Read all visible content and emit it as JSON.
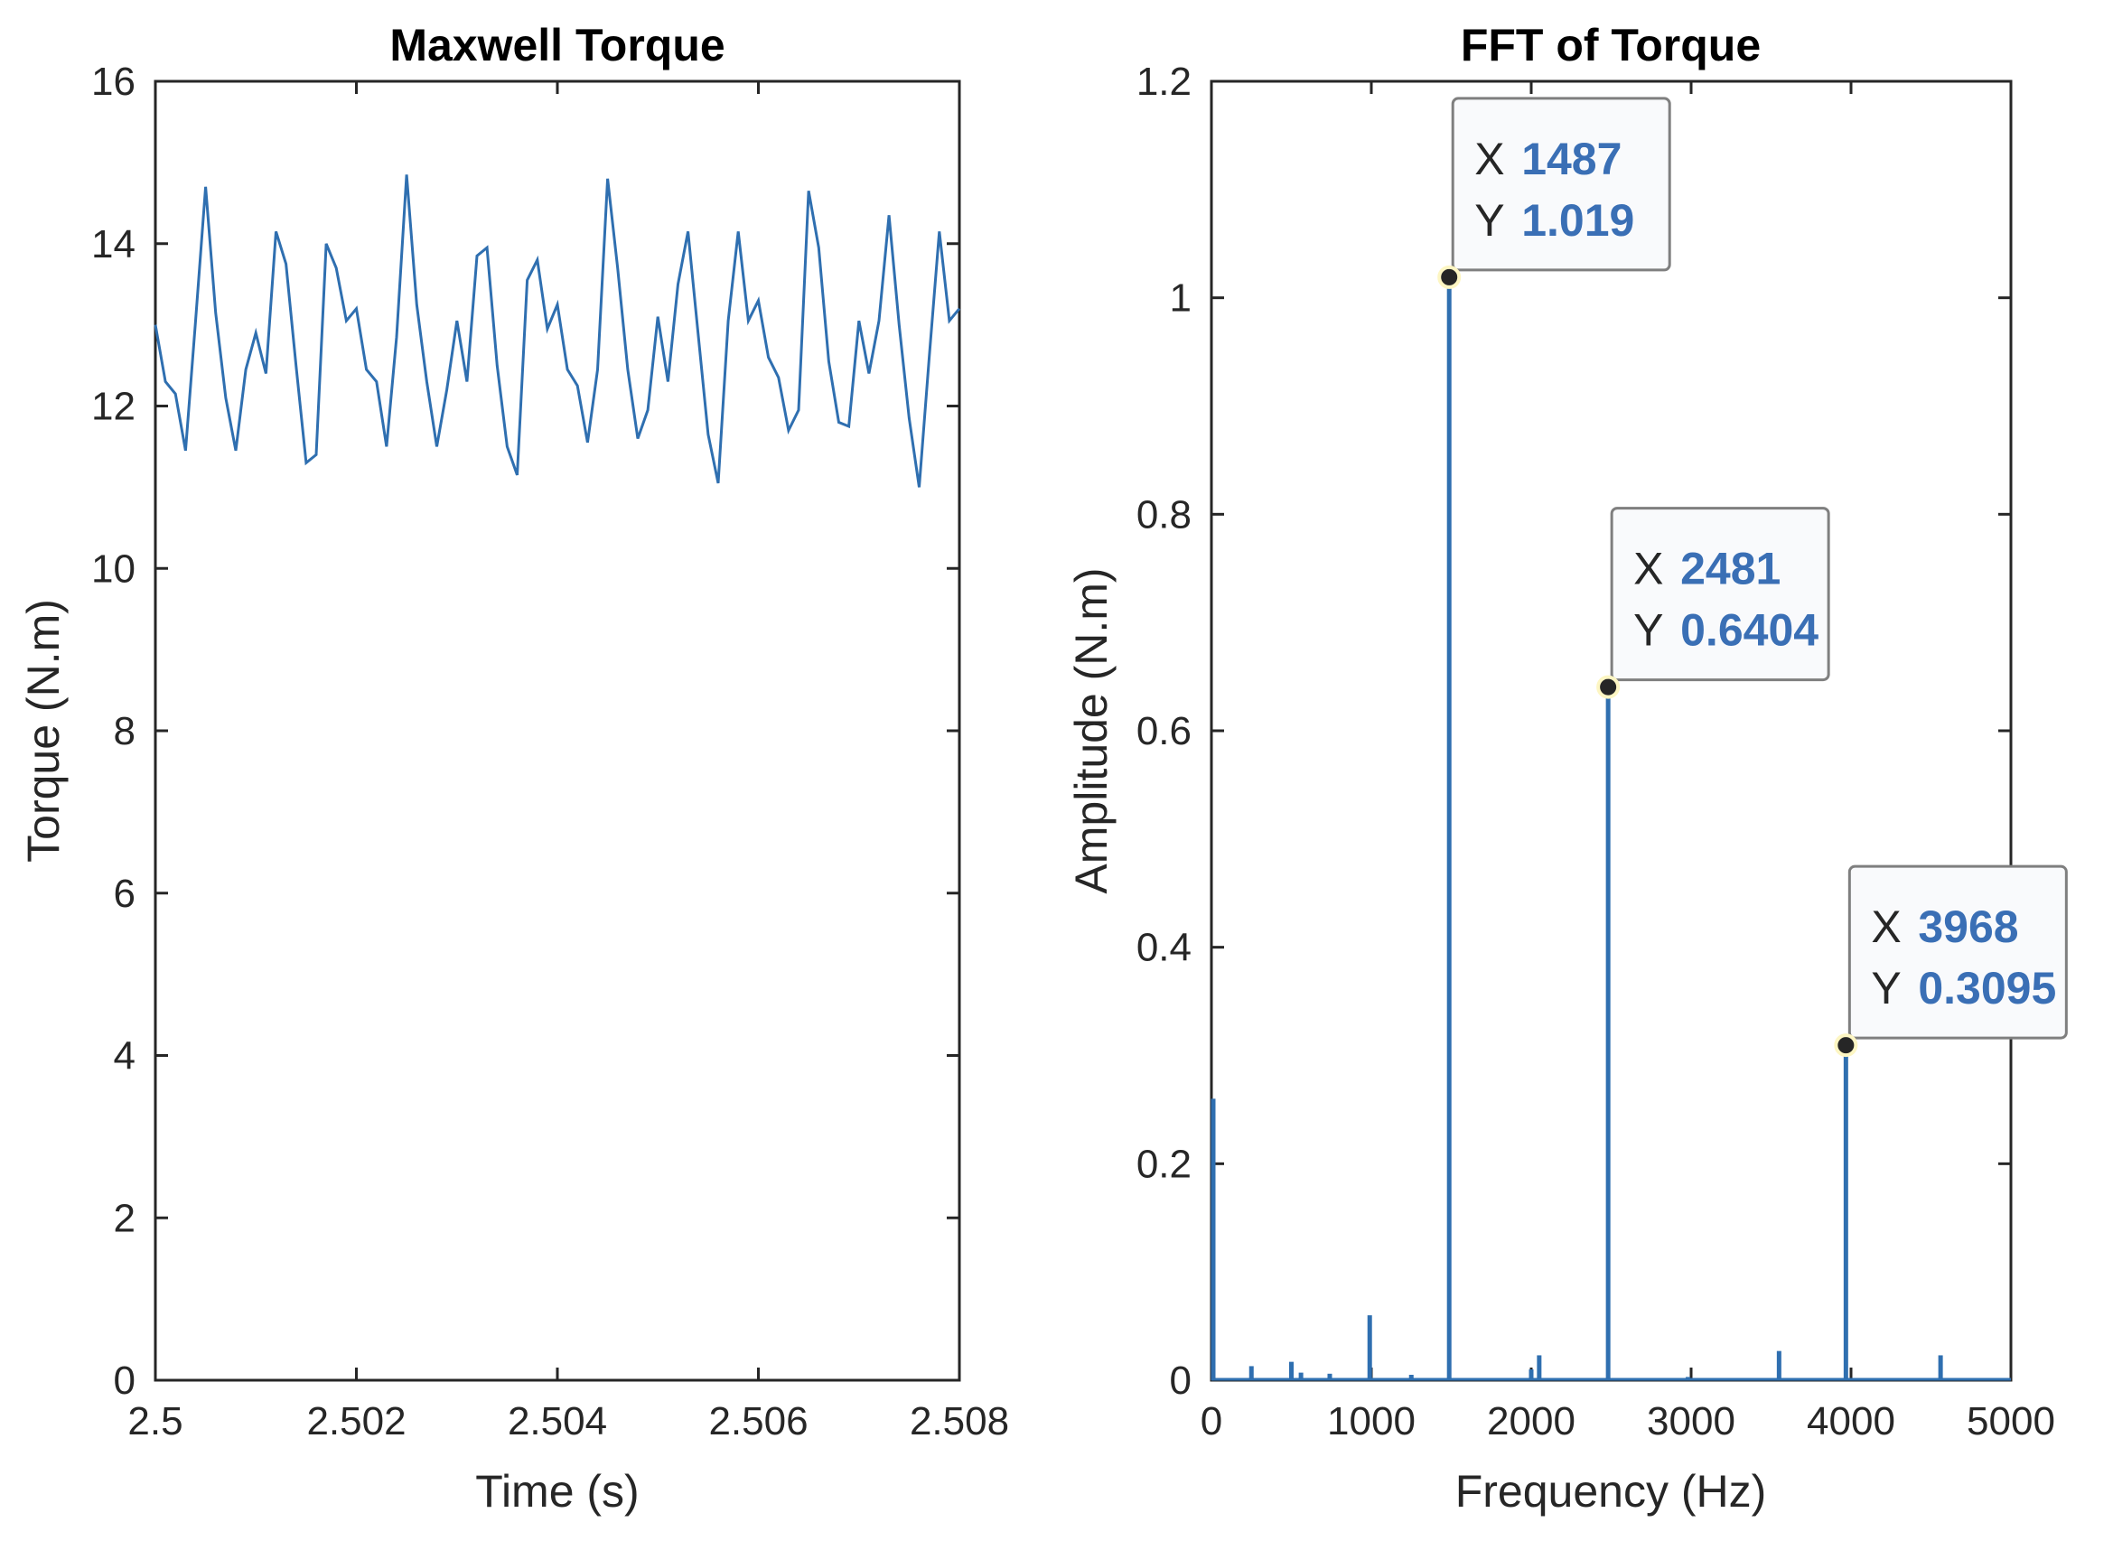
{
  "chart_data": [
    {
      "type": "line",
      "title": "Maxwell Torque",
      "xlabel": "Time (s)",
      "ylabel": "Torque (N.m)",
      "xlim": [
        2.5,
        2.508
      ],
      "ylim": [
        0,
        16
      ],
      "x_ticks": [
        "2.5",
        "2.502",
        "2.504",
        "2.506",
        "2.508"
      ],
      "x_tick_values": [
        2.5,
        2.502,
        2.504,
        2.506,
        2.508
      ],
      "y_ticks": [
        "0",
        "2",
        "4",
        "6",
        "8",
        "10",
        "12",
        "14",
        "16"
      ],
      "y_tick_values": [
        0,
        2,
        4,
        6,
        8,
        10,
        12,
        14,
        16
      ],
      "color": "#2f6fb0",
      "series": [
        {
          "name": "Torque",
          "x_start": 2.5,
          "x_step": 0.0001,
          "values": [
            13.0,
            12.3,
            12.15,
            11.45,
            13.05,
            14.7,
            13.15,
            12.1,
            11.45,
            12.45,
            12.9,
            12.4,
            14.15,
            13.75,
            12.5,
            11.3,
            11.4,
            14.0,
            13.7,
            13.05,
            13.2,
            12.45,
            12.3,
            11.5,
            12.85,
            14.85,
            13.25,
            12.3,
            11.5,
            12.2,
            13.05,
            12.3,
            13.85,
            13.95,
            12.5,
            11.5,
            11.15,
            13.55,
            13.8,
            12.95,
            13.25,
            12.45,
            12.25,
            11.55,
            12.45,
            14.8,
            13.7,
            12.45,
            11.6,
            11.95,
            13.1,
            12.3,
            13.5,
            14.15,
            12.9,
            11.65,
            11.05,
            13.05,
            14.15,
            13.05,
            13.3,
            12.6,
            12.35,
            11.7,
            11.95,
            14.65,
            13.95,
            12.55,
            11.8,
            11.75,
            13.05,
            12.4,
            13.05,
            14.35,
            13.0,
            11.85,
            11.0,
            12.6,
            14.15,
            13.05,
            13.2
          ]
        }
      ]
    },
    {
      "type": "bar",
      "title": "FFT of Torque",
      "xlabel": "Frequency (Hz)",
      "ylabel": "Amplitude (N.m)",
      "xlim": [
        0,
        5000
      ],
      "ylim": [
        0,
        1.2
      ],
      "x_ticks": [
        "0",
        "1000",
        "2000",
        "3000",
        "4000",
        "5000"
      ],
      "x_tick_values": [
        0,
        1000,
        2000,
        3000,
        4000,
        5000
      ],
      "y_ticks": [
        "0",
        "0.2",
        "0.4",
        "0.6",
        "0.8",
        "1",
        "1.2"
      ],
      "y_tick_values": [
        0,
        0.2,
        0.4,
        0.6,
        0.8,
        1.0,
        1.2
      ],
      "color": "#2f6fb0",
      "x": [
        0,
        250,
        500,
        560,
        740,
        990,
        1250,
        1487,
        2000,
        2050,
        2481,
        2980,
        3550,
        3968,
        4560
      ],
      "values": [
        0.26,
        0.013,
        0.017,
        0.007,
        0.006,
        0.06,
        0.005,
        1.019,
        0.01,
        0.023,
        0.6404,
        0.003,
        0.027,
        0.3095,
        0.023
      ],
      "datatips": [
        {
          "x_label": "X",
          "x_value": "1487",
          "y_label": "Y",
          "y_value": "1.019",
          "x": 1487,
          "y": 1.019
        },
        {
          "x_label": "X",
          "x_value": "2481",
          "y_label": "Y",
          "y_value": "0.6404",
          "x": 2481,
          "y": 0.6404
        },
        {
          "x_label": "X",
          "x_value": "3968",
          "y_label": "Y",
          "y_value": "0.3095",
          "x": 3968,
          "y": 0.3095
        }
      ]
    }
  ]
}
